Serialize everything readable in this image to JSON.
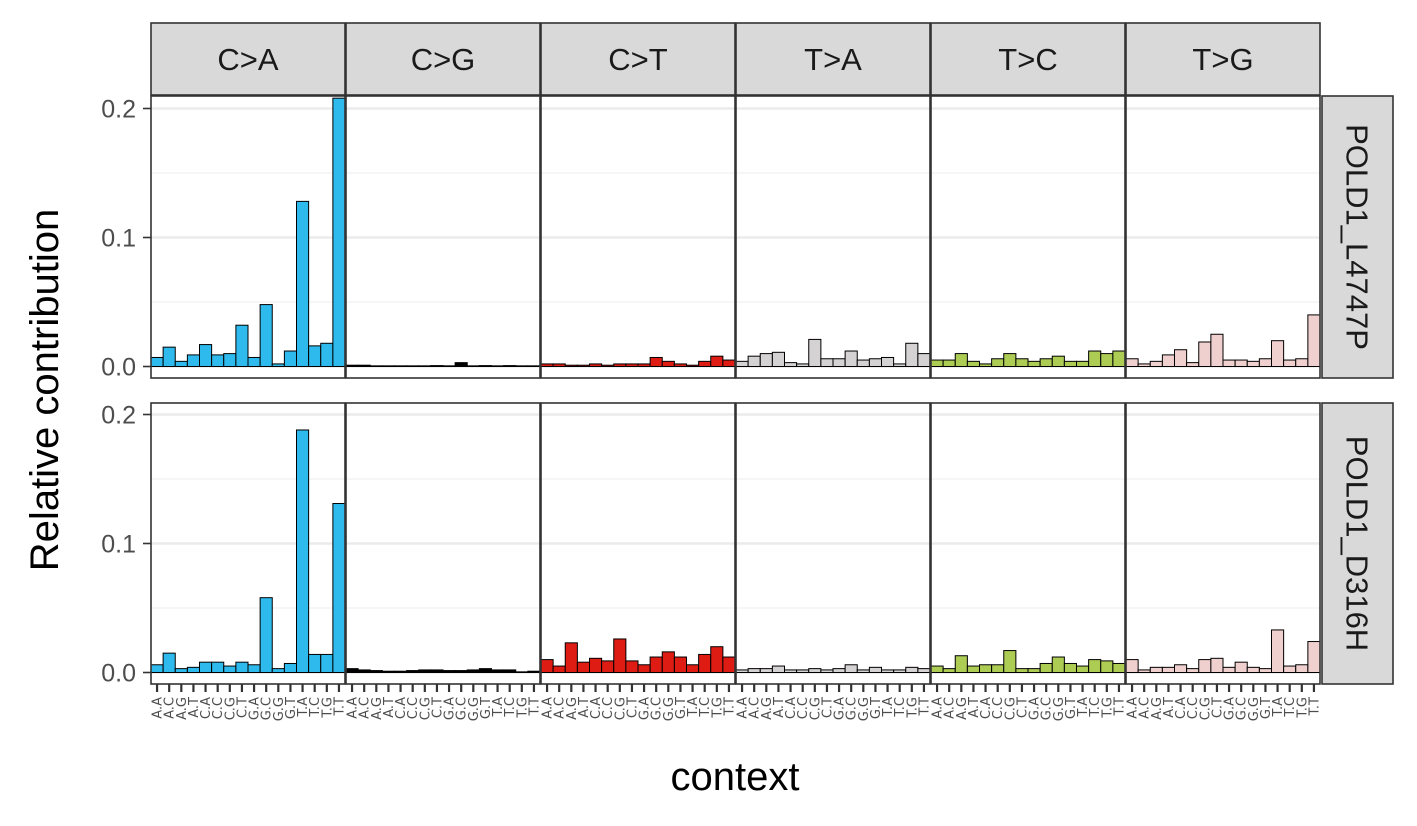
{
  "chart_data": {
    "type": "bar",
    "xlabel": "context",
    "ylabel": "Relative contribution",
    "ylim": [
      0,
      0.21
    ],
    "y_ticks": [
      "0.0",
      "0.1",
      "0.2"
    ],
    "y_tick_values": [
      0,
      0.1,
      0.2
    ],
    "grid": true,
    "substitutions": [
      "C>A",
      "C>G",
      "C>T",
      "T>A",
      "T>C",
      "T>G"
    ],
    "colors": [
      "#2EBAED",
      "#000000",
      "#DE1C14",
      "#D4D2D2",
      "#ADCC54",
      "#F0D0CE"
    ],
    "contexts": [
      "A.A",
      "A.C",
      "A.G",
      "A.T",
      "C.A",
      "C.C",
      "C.G",
      "C.T",
      "G.A",
      "G.C",
      "G.G",
      "G.T",
      "T.A",
      "T.C",
      "T.G",
      "T.T"
    ],
    "samples": [
      {
        "name": "POLD1_L4747P",
        "values": [
          [
            0.007,
            0.015,
            0.004,
            0.009,
            0.017,
            0.009,
            0.01,
            0.032,
            0.007,
            0.048,
            0.002,
            0.012,
            0.128,
            0.016,
            0.018,
            0.208
          ],
          [
            0.001,
            0.001,
            0.0005,
            0.0005,
            0.0005,
            0.0005,
            0.0005,
            0.0007,
            0.0005,
            0.003,
            0.0005,
            0.0007,
            0.0005,
            0.0007,
            0.0005,
            0.0005
          ],
          [
            0.002,
            0.002,
            0.001,
            0.001,
            0.002,
            0.001,
            0.002,
            0.002,
            0.002,
            0.007,
            0.004,
            0.002,
            0.001,
            0.004,
            0.008,
            0.005
          ],
          [
            0.004,
            0.008,
            0.01,
            0.011,
            0.003,
            0.002,
            0.021,
            0.006,
            0.006,
            0.012,
            0.005,
            0.006,
            0.007,
            0.002,
            0.018,
            0.01
          ],
          [
            0.005,
            0.005,
            0.01,
            0.004,
            0.002,
            0.006,
            0.01,
            0.006,
            0.004,
            0.006,
            0.008,
            0.004,
            0.004,
            0.012,
            0.01,
            0.012
          ],
          [
            0.006,
            0.002,
            0.004,
            0.009,
            0.013,
            0.003,
            0.019,
            0.025,
            0.005,
            0.005,
            0.004,
            0.006,
            0.02,
            0.005,
            0.006,
            0.04
          ]
        ]
      },
      {
        "name": "POLD1_D316H",
        "values": [
          [
            0.006,
            0.015,
            0.003,
            0.004,
            0.008,
            0.008,
            0.005,
            0.008,
            0.006,
            0.058,
            0.003,
            0.007,
            0.188,
            0.014,
            0.014,
            0.131
          ],
          [
            0.003,
            0.002,
            0.0015,
            0.001,
            0.001,
            0.0015,
            0.002,
            0.002,
            0.0015,
            0.0015,
            0.002,
            0.003,
            0.002,
            0.002,
            0.0005,
            0.001
          ],
          [
            0.01,
            0.005,
            0.023,
            0.008,
            0.011,
            0.009,
            0.026,
            0.009,
            0.006,
            0.012,
            0.016,
            0.012,
            0.006,
            0.014,
            0.02,
            0.012
          ],
          [
            0.002,
            0.003,
            0.003,
            0.005,
            0.002,
            0.002,
            0.003,
            0.002,
            0.003,
            0.006,
            0.002,
            0.004,
            0.002,
            0.002,
            0.004,
            0.003
          ],
          [
            0.005,
            0.003,
            0.013,
            0.005,
            0.006,
            0.006,
            0.017,
            0.003,
            0.003,
            0.007,
            0.012,
            0.007,
            0.005,
            0.01,
            0.009,
            0.007
          ],
          [
            0.01,
            0.002,
            0.004,
            0.004,
            0.006,
            0.003,
            0.01,
            0.011,
            0.004,
            0.008,
            0.004,
            0.003,
            0.033,
            0.005,
            0.006,
            0.024
          ]
        ]
      }
    ]
  }
}
